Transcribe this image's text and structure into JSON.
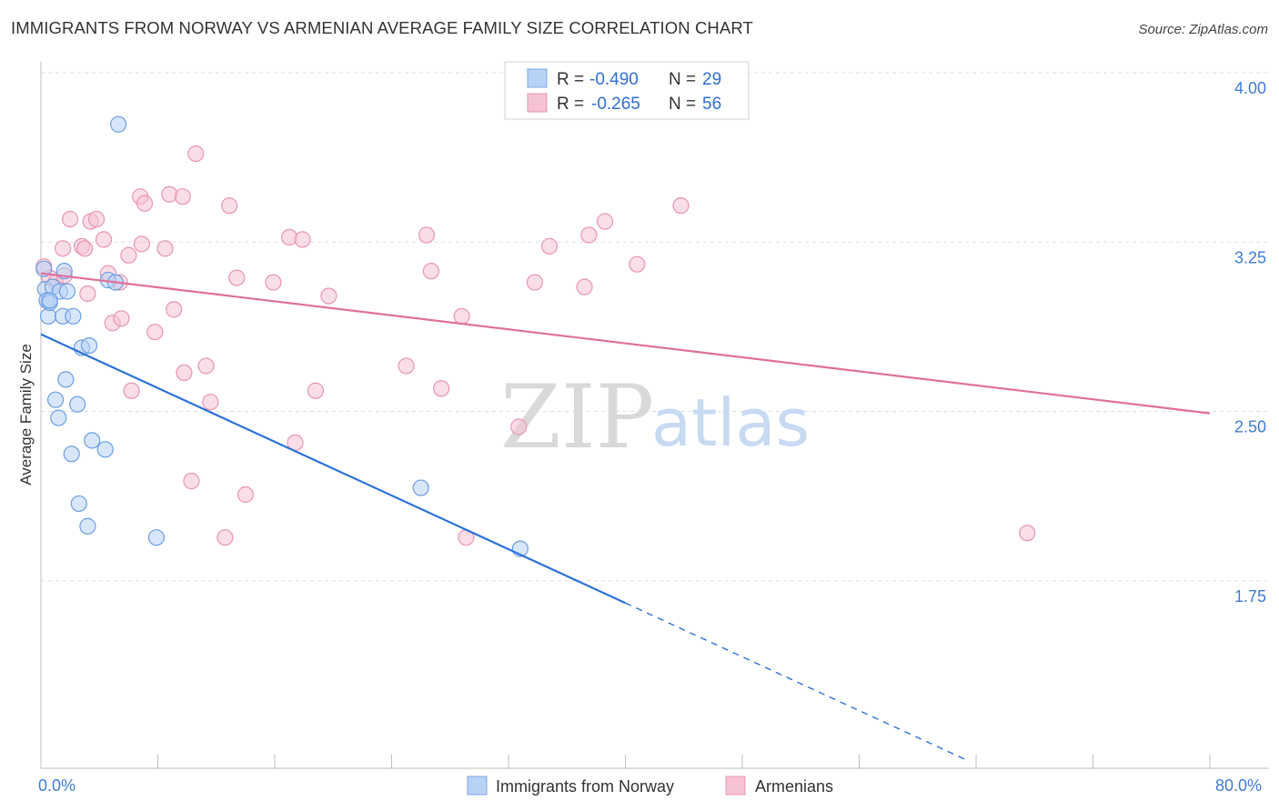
{
  "title": "IMMIGRANTS FROM NORWAY VS ARMENIAN AVERAGE FAMILY SIZE CORRELATION CHART",
  "source": "Source: ZipAtlas.com",
  "colors": {
    "blue": "#2c72d8",
    "blue_fill": "#b8d2f5",
    "pink": "#e0709a",
    "pink_fill": "#f5c3d4",
    "grid": "#dddddd",
    "tick_text": "#3f7bd6"
  },
  "legend": {
    "rows": [
      {
        "r_label": "R =",
        "r_value": "-0.490",
        "n_label": "N =",
        "n_value": "29"
      },
      {
        "r_label": "R =",
        "r_value": "-0.265",
        "n_label": "N =",
        "n_value": "56"
      }
    ]
  },
  "watermark": {
    "zip": "ZIP",
    "atlas": "atlas"
  },
  "chart_data": {
    "type": "scatter",
    "title": "IMMIGRANTS FROM NORWAY VS ARMENIAN AVERAGE FAMILY SIZE CORRELATION CHART",
    "xlabel": "",
    "ylabel": "Average Family Size",
    "xlim": [
      0,
      80
    ],
    "ylim": [
      1.0,
      4.15
    ],
    "x_tick_labels": [
      "0.0%",
      "80.0%"
    ],
    "y_ticks": [
      1.75,
      2.5,
      3.25,
      4.0
    ],
    "y_tick_labels": [
      "1.75",
      "2.50",
      "3.25",
      "4.00"
    ],
    "grid": true,
    "series": [
      {
        "name": "Immigrants from Norway",
        "color": "#2c72d8",
        "r": -0.49,
        "n": 29,
        "points": [
          [
            0.2,
            3.2
          ],
          [
            0.3,
            3.11
          ],
          [
            0.4,
            3.06
          ],
          [
            0.5,
            2.99
          ],
          [
            0.6,
            3.05
          ],
          [
            0.8,
            3.12
          ],
          [
            1.0,
            2.62
          ],
          [
            1.2,
            2.54
          ],
          [
            1.3,
            3.1
          ],
          [
            1.5,
            2.99
          ],
          [
            1.6,
            3.19
          ],
          [
            1.7,
            2.71
          ],
          [
            1.8,
            3.1
          ],
          [
            2.1,
            2.38
          ],
          [
            2.2,
            2.99
          ],
          [
            2.5,
            2.6
          ],
          [
            2.6,
            2.16
          ],
          [
            2.8,
            2.85
          ],
          [
            3.2,
            2.06
          ],
          [
            3.3,
            2.86
          ],
          [
            3.5,
            2.44
          ],
          [
            4.4,
            2.4
          ],
          [
            4.6,
            3.15
          ],
          [
            5.1,
            3.14
          ],
          [
            5.3,
            3.84
          ],
          [
            7.9,
            2.01
          ],
          [
            26.0,
            2.23
          ],
          [
            32.8,
            1.96
          ],
          [
            0.6,
            3.06
          ]
        ],
        "trend": {
          "x0": 0,
          "y0": 2.91,
          "x1": 40,
          "y1": 1.72,
          "dashed_to_x": 63.5,
          "dashed_to_y": 1.02
        }
      },
      {
        "name": "Armenians",
        "color": "#e0709a",
        "r": -0.265,
        "n": 56,
        "points": [
          [
            0.2,
            3.21
          ],
          [
            0.6,
            3.16
          ],
          [
            1.0,
            3.14
          ],
          [
            1.5,
            3.29
          ],
          [
            1.6,
            3.17
          ],
          [
            2.0,
            3.42
          ],
          [
            2.8,
            3.3
          ],
          [
            3.0,
            3.29
          ],
          [
            3.2,
            3.09
          ],
          [
            3.4,
            3.41
          ],
          [
            3.8,
            3.42
          ],
          [
            4.3,
            3.33
          ],
          [
            4.6,
            3.18
          ],
          [
            4.9,
            2.96
          ],
          [
            5.4,
            3.14
          ],
          [
            5.5,
            2.98
          ],
          [
            6.0,
            3.26
          ],
          [
            6.2,
            2.66
          ],
          [
            6.8,
            3.52
          ],
          [
            6.9,
            3.31
          ],
          [
            7.1,
            3.49
          ],
          [
            7.8,
            2.92
          ],
          [
            8.5,
            3.29
          ],
          [
            8.8,
            3.53
          ],
          [
            9.1,
            3.02
          ],
          [
            9.7,
            3.52
          ],
          [
            9.8,
            2.74
          ],
          [
            10.3,
            2.26
          ],
          [
            10.6,
            3.71
          ],
          [
            11.3,
            2.77
          ],
          [
            11.6,
            2.61
          ],
          [
            12.6,
            2.01
          ],
          [
            12.9,
            3.48
          ],
          [
            13.4,
            3.16
          ],
          [
            14.0,
            2.2
          ],
          [
            15.9,
            3.14
          ],
          [
            17.0,
            3.34
          ],
          [
            17.4,
            2.43
          ],
          [
            17.9,
            3.33
          ],
          [
            18.8,
            2.66
          ],
          [
            19.7,
            3.08
          ],
          [
            25.0,
            2.77
          ],
          [
            26.4,
            3.35
          ],
          [
            26.7,
            3.19
          ],
          [
            27.4,
            2.67
          ],
          [
            28.8,
            2.99
          ],
          [
            29.1,
            2.01
          ],
          [
            32.7,
            2.5
          ],
          [
            33.8,
            3.14
          ],
          [
            34.8,
            3.3
          ],
          [
            37.2,
            3.12
          ],
          [
            37.5,
            3.35
          ],
          [
            38.6,
            3.41
          ],
          [
            40.8,
            3.22
          ],
          [
            43.8,
            3.48
          ],
          [
            67.5,
            2.03
          ]
        ],
        "trend": {
          "x0": 0,
          "y0": 3.18,
          "x1": 80,
          "y1": 2.56
        }
      }
    ]
  },
  "bottom_legend": [
    "Immigrants from Norway",
    "Armenians"
  ]
}
